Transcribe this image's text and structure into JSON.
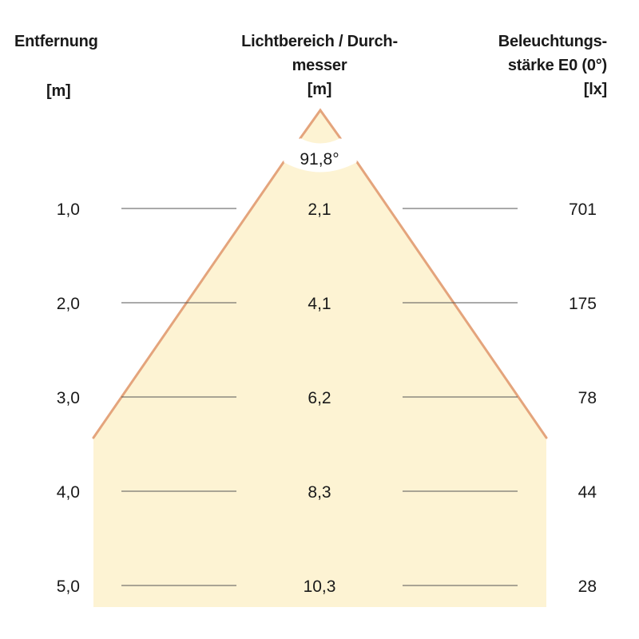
{
  "headers": {
    "distance": {
      "line1": "Entfernung",
      "unit": "[m]"
    },
    "diameter": {
      "line1": "Lichtbereich / Durch-",
      "line2": "messer",
      "unit": "[m]"
    },
    "illuminance": {
      "line1": "Beleuchtungs-",
      "line2": "stärke E0 (0°)",
      "unit": "[lx]"
    }
  },
  "beam_angle": "91,8°",
  "rows": [
    {
      "distance": "1,0",
      "diameter": "2,1",
      "illuminance": "701"
    },
    {
      "distance": "2,0",
      "diameter": "4,1",
      "illuminance": "175"
    },
    {
      "distance": "3,0",
      "diameter": "6,2",
      "illuminance": "78"
    },
    {
      "distance": "4,0",
      "diameter": "8,3",
      "illuminance": "44"
    },
    {
      "distance": "5,0",
      "diameter": "10,3",
      "illuminance": "28"
    }
  ],
  "colors": {
    "cone_fill": "#fdf3d3",
    "cone_edge": "#e4a47c",
    "rule_line": "#555555"
  }
}
